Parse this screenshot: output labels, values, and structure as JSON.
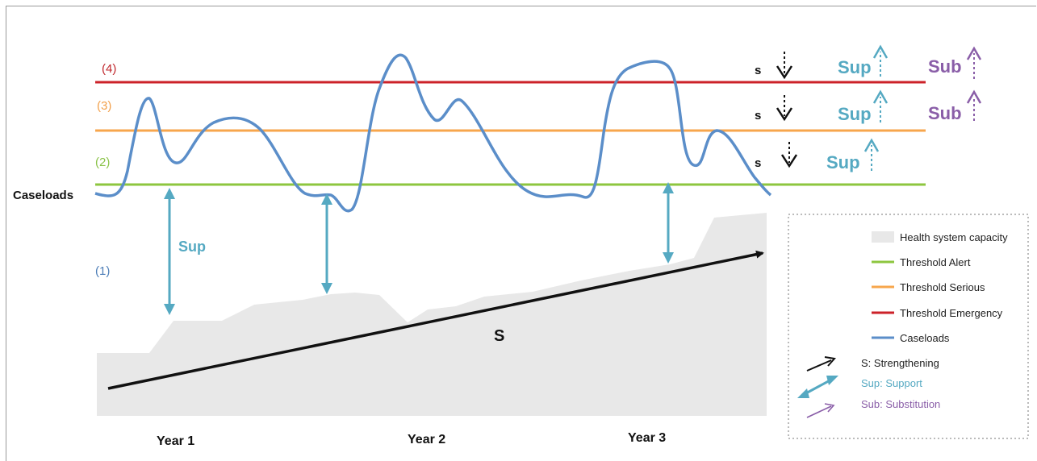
{
  "y_axis": {
    "label": "Caseloads"
  },
  "x_axis": {
    "labels": [
      "Year 1",
      "Year 2",
      "Year 3"
    ]
  },
  "levels": [
    {
      "id": "4",
      "text": "(4)",
      "color": "#c0282d"
    },
    {
      "id": "3",
      "text": "(3)",
      "color": "#f2a04a"
    },
    {
      "id": "2",
      "text": "(2)",
      "color": "#8bc34a"
    },
    {
      "id": "1",
      "text": "(1)",
      "color": "#4e7fb8"
    }
  ],
  "lines": {
    "emergency": "#cc2229",
    "serious": "#f7a64c",
    "alert": "#8dc63f",
    "caseloads": "#5b8ec9"
  },
  "colors": {
    "sup": "#55a9c2",
    "sub": "#8a5ea8",
    "strengthening": "#111111",
    "capacity": "#e8e8e8"
  },
  "labels": {
    "sup_left": "Sup",
    "strengthening_center": "S"
  },
  "indicators": [
    {
      "row": "4",
      "s": "s",
      "sup": "Sup",
      "sub": "Sub"
    },
    {
      "row": "3",
      "s": "s",
      "sup": "Sup",
      "sub": "Sub"
    },
    {
      "row": "2",
      "s": "s",
      "sup": "Sup"
    }
  ],
  "legend": {
    "items": [
      {
        "key": "capacity",
        "label": "Health system capacity"
      },
      {
        "key": "alert",
        "label": "Threshold Alert"
      },
      {
        "key": "serious",
        "label": "Threshold Serious"
      },
      {
        "key": "emergency",
        "label": "Threshold Emergency"
      },
      {
        "key": "caseloads",
        "label": "Caseloads"
      }
    ],
    "arrows": [
      {
        "key": "strengthening",
        "label": "S: Strengthening",
        "color": "#111111"
      },
      {
        "key": "support",
        "label": "Sup: Support",
        "color": "#55a9c2"
      },
      {
        "key": "substitution",
        "label": "Sub: Substitution",
        "color": "#8a5ea8"
      }
    ]
  }
}
